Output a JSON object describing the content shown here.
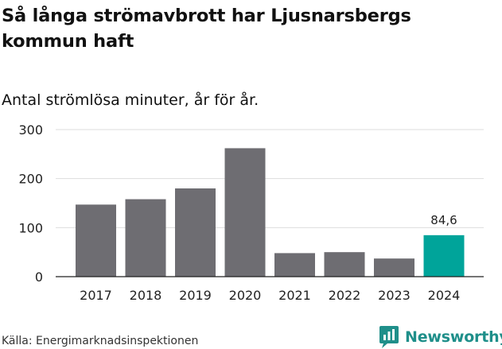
{
  "title": "Så långa strömavbrott har Ljusnarsbergs kommun haft",
  "subtitle": "Antal strömlösa minuter, år för år.",
  "source": "Källa: Energimarknadsinspektionen",
  "brand": {
    "name": "Newsworthy",
    "icon": "newsworthy-logo-icon",
    "color": "#1f8f8a"
  },
  "colors": {
    "bar": "#6e6d72",
    "highlight": "#00a49a",
    "grid": "#dddddd",
    "axis": "#222222"
  },
  "chart_data": {
    "type": "bar",
    "categories": [
      "2017",
      "2018",
      "2019",
      "2020",
      "2021",
      "2022",
      "2023",
      "2024"
    ],
    "values": [
      147,
      158,
      180,
      262,
      48,
      50,
      37,
      84.6
    ],
    "ylim": [
      0,
      300
    ],
    "yticks": [
      "0",
      "100",
      "200",
      "300"
    ],
    "grid": true,
    "highlight_index": 7,
    "data_labels": [
      "",
      "",
      "",
      "",
      "",
      "",
      "",
      "84,6"
    ]
  }
}
